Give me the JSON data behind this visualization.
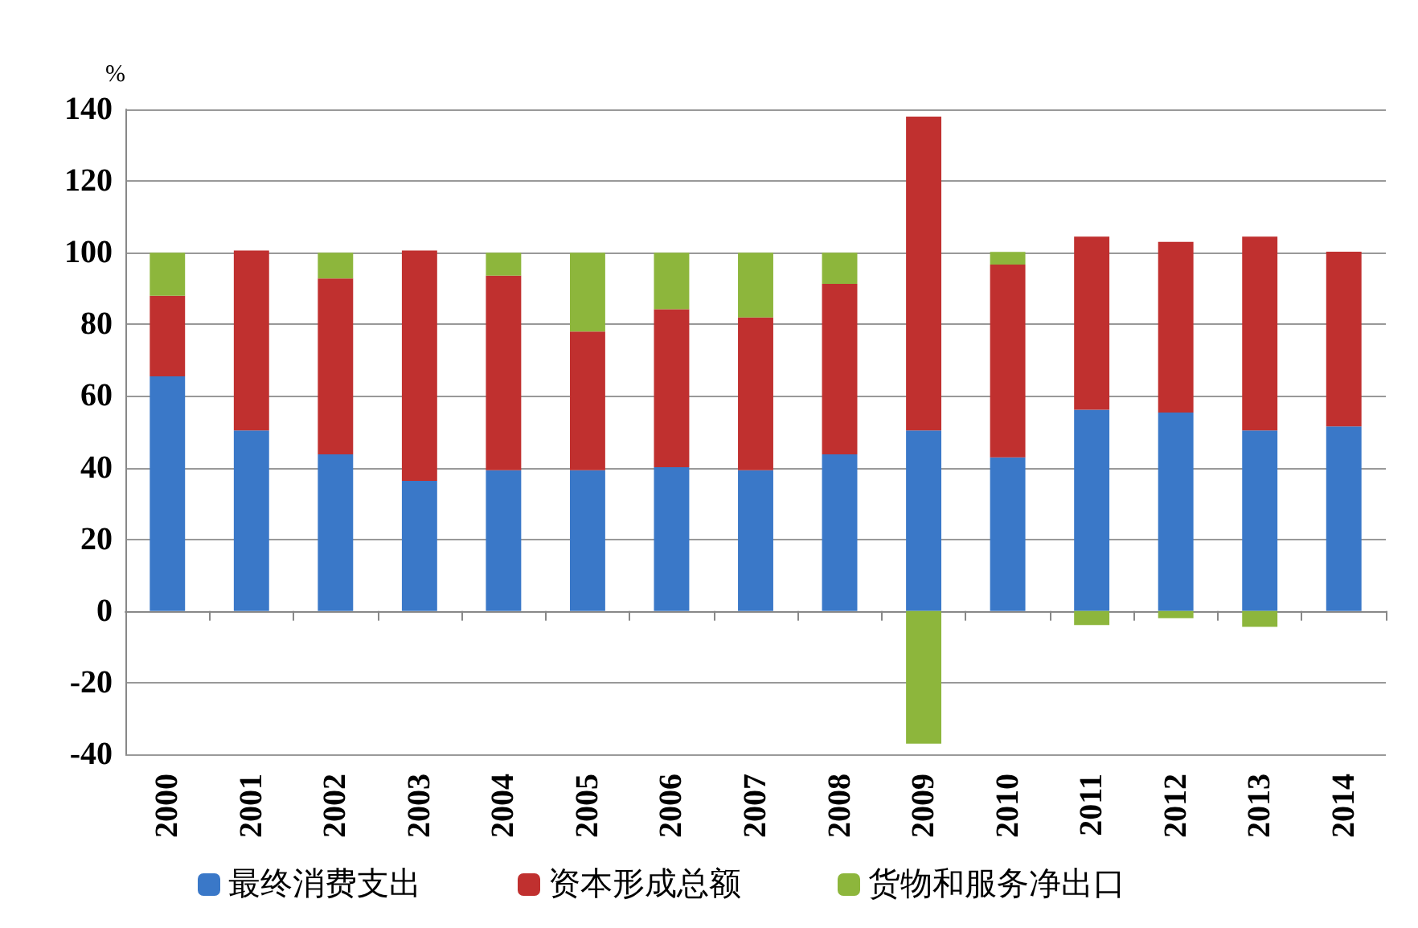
{
  "chart_data": {
    "type": "bar",
    "stacked": true,
    "ylabel": "%",
    "categories": [
      "2000",
      "2001",
      "2002",
      "2003",
      "2004",
      "2005",
      "2006",
      "2007",
      "2008",
      "2009",
      "2010",
      "2011",
      "2012",
      "2013",
      "2014"
    ],
    "series": [
      {
        "name": "最终消费支出",
        "color": "#3a78c8",
        "values": [
          65.5,
          50.4,
          43.7,
          36.3,
          39.3,
          39.3,
          40.1,
          39.3,
          43.7,
          50.4,
          42.9,
          56.2,
          55.4,
          50.4,
          51.5
        ]
      },
      {
        "name": "资本形成总额",
        "color": "#c0302f",
        "values": [
          22.5,
          50.2,
          49.1,
          64.3,
          54.3,
          38.7,
          44.1,
          42.6,
          47.6,
          87.6,
          53.8,
          48.3,
          47.6,
          54.1,
          48.8
        ]
      },
      {
        "name": "货物和服务净出口",
        "color": "#8db63c",
        "values": [
          12,
          0,
          7.2,
          0,
          6.4,
          22,
          15.8,
          18.1,
          8.7,
          -37,
          3.5,
          -3.9,
          -2,
          -4.4,
          0
        ]
      }
    ],
    "ylim": [
      -40,
      140
    ],
    "yticks": [
      -40,
      -20,
      0,
      20,
      40,
      60,
      80,
      100,
      120,
      140
    ],
    "grid": "y",
    "legend": "bottom"
  }
}
